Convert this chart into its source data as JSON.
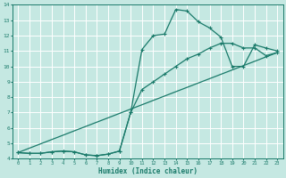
{
  "xlabel": "Humidex (Indice chaleur)",
  "xlim": [
    -0.5,
    23.5
  ],
  "ylim": [
    4.0,
    14.0
  ],
  "xticks": [
    0,
    1,
    2,
    3,
    4,
    5,
    6,
    7,
    8,
    9,
    10,
    11,
    12,
    13,
    14,
    15,
    16,
    17,
    18,
    19,
    20,
    21,
    22,
    23
  ],
  "yticks": [
    4,
    5,
    6,
    7,
    8,
    9,
    10,
    11,
    12,
    13,
    14
  ],
  "bg_color": "#c5e8e2",
  "grid_color": "#ffffff",
  "line_color": "#1a7a6a",
  "line1_x": [
    0,
    1,
    2,
    3,
    4,
    5,
    6,
    7,
    8,
    9,
    10,
    11,
    12,
    13,
    14,
    15,
    16,
    17,
    18,
    19,
    20,
    21,
    22,
    23
  ],
  "line1_y": [
    4.4,
    4.35,
    4.35,
    4.45,
    4.5,
    4.45,
    4.25,
    4.2,
    4.3,
    4.5,
    7.0,
    11.1,
    12.0,
    12.1,
    13.7,
    13.6,
    12.9,
    12.5,
    11.9,
    10.0,
    10.0,
    11.4,
    11.2,
    11.0
  ],
  "line2_x": [
    0,
    1,
    2,
    3,
    4,
    5,
    6,
    7,
    8,
    9,
    10,
    11,
    12,
    13,
    14,
    15,
    16,
    17,
    18,
    19,
    20,
    21,
    22,
    23
  ],
  "line2_y": [
    4.4,
    4.35,
    4.35,
    4.45,
    4.5,
    4.45,
    4.25,
    4.2,
    4.3,
    4.5,
    7.0,
    8.5,
    9.0,
    9.5,
    10.0,
    10.5,
    10.8,
    11.2,
    11.5,
    11.5,
    11.2,
    11.2,
    10.7,
    10.9
  ],
  "line3_x": [
    0,
    23
  ],
  "line3_y": [
    4.4,
    10.9
  ]
}
